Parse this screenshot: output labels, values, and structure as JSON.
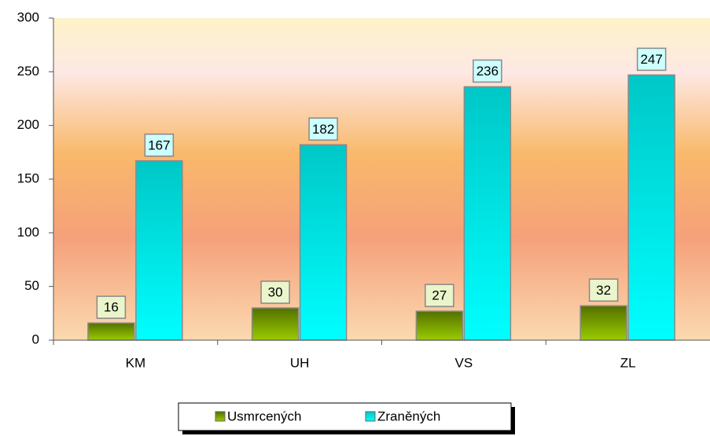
{
  "chart_data": {
    "type": "bar",
    "categories": [
      "KM",
      "UH",
      "VS",
      "ZL"
    ],
    "series": [
      {
        "name": "Usmrcených",
        "color": "#99cc00",
        "values": [
          16,
          30,
          27,
          32
        ]
      },
      {
        "name": "Zraněných",
        "color": "#00ffff",
        "values": [
          167,
          182,
          236,
          247
        ]
      }
    ],
    "ylim": [
      0,
      300
    ],
    "yticks": [
      0,
      50,
      100,
      150,
      200,
      250,
      300
    ],
    "legend": "bottom",
    "data_labels": true
  }
}
